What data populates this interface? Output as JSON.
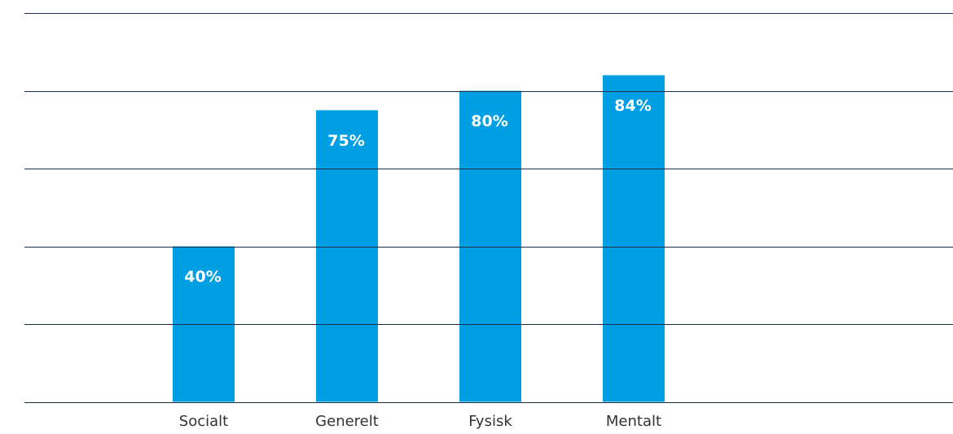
{
  "chart_data": {
    "type": "bar",
    "categories": [
      "Socialt",
      "Generelt",
      "Fysisk",
      "Mentalt"
    ],
    "values": [
      40,
      75,
      80,
      84
    ],
    "value_labels": [
      "40%",
      "75%",
      "80%",
      "84%"
    ],
    "color": "#009fe3",
    "ylim": [
      0,
      100
    ],
    "yticks": [
      0,
      20,
      40,
      60,
      80,
      100
    ],
    "grid": true
  }
}
